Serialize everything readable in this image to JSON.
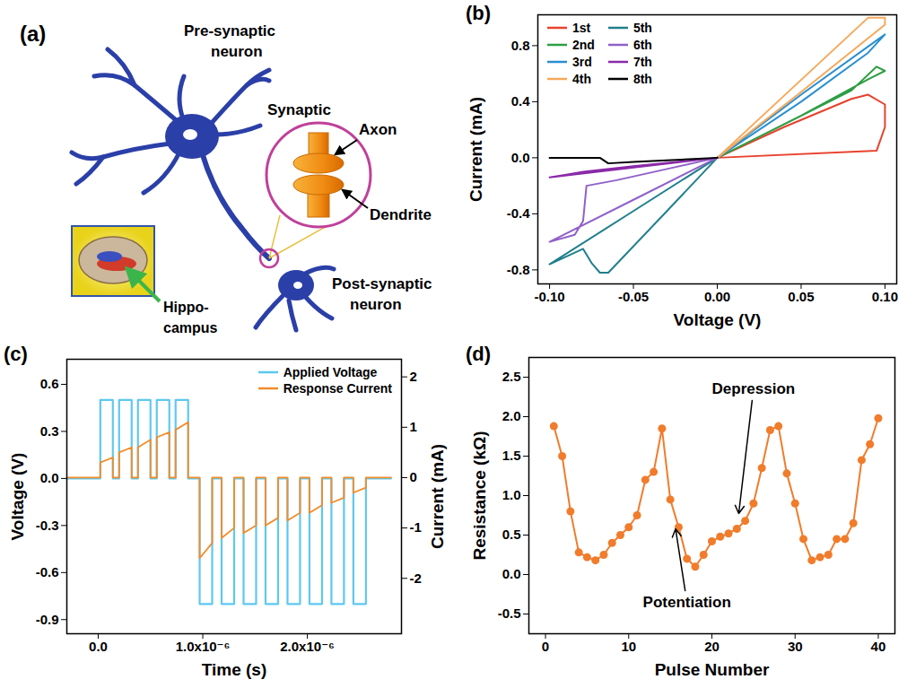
{
  "diagram": {
    "title": "(a)",
    "labels": {
      "pre_synaptic": [
        "Pre-synaptic",
        "neuron"
      ],
      "synaptic": [
        "Synaptic"
      ],
      "axon": [
        "Axon"
      ],
      "dendrite": [
        "Dendrite"
      ],
      "hippocampus": [
        "Hippo-",
        "campus"
      ],
      "post_synaptic": [
        "Post-synaptic",
        "neuron"
      ]
    }
  },
  "chart_data": [
    {
      "type": "line",
      "title": "(b)",
      "xlabel": "Voltage (V)",
      "ylabel": "Current (mA)",
      "xlim": [
        -0.107,
        0.107
      ],
      "xticks": [
        {
          "value": -0.1,
          "label": "-0.10"
        },
        {
          "value": -0.05,
          "label": "-0.05"
        },
        {
          "value": 0,
          "label": "0.00"
        },
        {
          "value": 0.05,
          "label": "0.05"
        },
        {
          "value": 0.1,
          "label": "0.10"
        }
      ],
      "ylim": [
        -0.9,
        1.02
      ],
      "yticks": [
        -0.8,
        -0.4,
        {
          "value": 0,
          "label": "0.0"
        },
        0.4,
        0.8
      ],
      "legend": "top-left",
      "series": [
        {
          "name": "1st",
          "color": "#e8412c",
          "x": [
            0,
            0.04,
            0.08,
            0.09,
            0.1,
            0.1,
            0.095,
            0
          ],
          "values": [
            0,
            0.22,
            0.42,
            0.45,
            0.38,
            0.22,
            0.05,
            0
          ]
        },
        {
          "name": "2nd",
          "color": "#2e9e44",
          "x": [
            0,
            0.05,
            0.08,
            0.095,
            0.1,
            0.09,
            0.05,
            0
          ],
          "values": [
            0,
            0.3,
            0.48,
            0.65,
            0.62,
            0.56,
            0.3,
            0
          ]
        },
        {
          "name": "3rd",
          "color": "#2a8fd0",
          "x": [
            0,
            0.05,
            0.1,
            0.09,
            0.05,
            0
          ],
          "values": [
            0,
            0.45,
            0.88,
            0.75,
            0.4,
            0
          ]
        },
        {
          "name": "4th",
          "color": "#f5a95b",
          "x": [
            0,
            0.09,
            0.1,
            0.1,
            0.05,
            0
          ],
          "values": [
            0,
            1.0,
            1.0,
            0.95,
            0.47,
            0
          ]
        },
        {
          "name": "5th",
          "color": "#1f7f8c",
          "x": [
            0,
            -0.05,
            -0.1,
            -0.08,
            -0.075,
            -0.07,
            -0.065,
            -0.03,
            0
          ],
          "values": [
            0,
            -0.38,
            -0.76,
            -0.65,
            -0.75,
            -0.82,
            -0.82,
            -0.38,
            0
          ]
        },
        {
          "name": "6th",
          "color": "#9060c8",
          "x": [
            0,
            -0.05,
            -0.1,
            -0.085,
            -0.08,
            -0.078,
            -0.06,
            -0.03,
            0
          ],
          "values": [
            0,
            -0.3,
            -0.6,
            -0.55,
            -0.45,
            -0.2,
            -0.16,
            -0.08,
            0
          ]
        },
        {
          "name": "7th",
          "color": "#8a2aa8",
          "x": [
            0,
            -0.1,
            -0.09,
            -0.08,
            -0.05,
            0
          ],
          "values": [
            0,
            -0.14,
            -0.12,
            -0.1,
            -0.06,
            0
          ]
        },
        {
          "name": "8th",
          "color": "#000000",
          "x": [
            0,
            -0.05,
            -0.065,
            -0.07,
            -0.1
          ],
          "values": [
            0,
            -0.03,
            -0.04,
            0,
            0
          ]
        }
      ]
    },
    {
      "type": "line",
      "title": "(c)",
      "xlabel": "Time (s)",
      "ylabel": "Voltage (V)",
      "y2label": "Current (mA)",
      "xlim": [
        -3e-07,
        2.9e-06
      ],
      "xticks": [
        {
          "value": 0,
          "label": "0.0"
        },
        {
          "value": 1e-06,
          "label": "1.0x10⁻⁶"
        },
        {
          "value": 2e-06,
          "label": "2.0x10⁻⁶"
        }
      ],
      "ylim": [
        -0.99,
        0.76
      ],
      "yticks": [
        {
          "value": -0.9,
          "label": "-0.9"
        },
        {
          "value": -0.6,
          "label": "-0.6"
        },
        {
          "value": -0.3,
          "label": "-0.3"
        },
        {
          "value": 0,
          "label": "0.0"
        },
        {
          "value": 0.3,
          "label": "0.3"
        },
        {
          "value": 0.6,
          "label": "0.6"
        }
      ],
      "y2lim": [
        -3.1,
        2.35
      ],
      "y2ticks": [
        -2,
        -1,
        0,
        1,
        2
      ],
      "legend": "top-right",
      "series": [
        {
          "name": "Applied Voltage",
          "color": "#5ec8f0",
          "x": [
            -3e-07,
            2e-08,
            2e-08,
            1.4e-07,
            1.4e-07,
            2e-07,
            2e-07,
            3.2e-07,
            3.2e-07,
            3.8e-07,
            3.8e-07,
            5e-07,
            5e-07,
            5.6e-07,
            5.6e-07,
            6.8e-07,
            6.8e-07,
            7.4e-07,
            7.4e-07,
            8.6e-07,
            8.6e-07,
            9.7e-07,
            9.7e-07,
            1.09e-06,
            1.09e-06,
            1.18e-06,
            1.18e-06,
            1.3e-06,
            1.3e-06,
            1.39e-06,
            1.39e-06,
            1.51e-06,
            1.51e-06,
            1.6e-06,
            1.6e-06,
            1.72e-06,
            1.72e-06,
            1.81e-06,
            1.81e-06,
            1.93e-06,
            1.93e-06,
            2.02e-06,
            2.02e-06,
            2.14e-06,
            2.14e-06,
            2.23e-06,
            2.23e-06,
            2.35e-06,
            2.35e-06,
            2.44e-06,
            2.44e-06,
            2.56e-06,
            2.56e-06,
            2.8e-06
          ],
          "values": [
            0,
            0,
            0.5,
            0.5,
            0,
            0,
            0.5,
            0.5,
            0,
            0,
            0.5,
            0.5,
            0,
            0,
            0.5,
            0.5,
            0,
            0,
            0.5,
            0.5,
            0,
            0,
            -0.8,
            -0.8,
            0,
            0,
            -0.8,
            -0.8,
            0,
            0,
            -0.8,
            -0.8,
            0,
            0,
            -0.8,
            -0.8,
            0,
            0,
            -0.8,
            -0.8,
            0,
            0,
            -0.8,
            -0.8,
            0,
            0,
            -0.8,
            -0.8,
            0,
            0,
            -0.8,
            -0.8,
            0,
            0
          ]
        },
        {
          "name": "Response Current",
          "color": "#f28c28",
          "axis": "y2",
          "x": [
            -3e-07,
            2e-08,
            2e-08,
            1.4e-07,
            1.4e-07,
            2e-07,
            2e-07,
            3.2e-07,
            3.2e-07,
            3.8e-07,
            3.8e-07,
            5e-07,
            5e-07,
            5.6e-07,
            5.6e-07,
            6.8e-07,
            6.8e-07,
            7.4e-07,
            7.4e-07,
            8.6e-07,
            8.6e-07,
            9.7e-07,
            9.7e-07,
            1.09e-06,
            1.09e-06,
            1.18e-06,
            1.18e-06,
            1.3e-06,
            1.3e-06,
            1.39e-06,
            1.39e-06,
            1.51e-06,
            1.51e-06,
            1.6e-06,
            1.6e-06,
            1.72e-06,
            1.72e-06,
            1.81e-06,
            1.81e-06,
            1.93e-06,
            1.93e-06,
            2.02e-06,
            2.02e-06,
            2.14e-06,
            2.14e-06,
            2.23e-06,
            2.23e-06,
            2.35e-06,
            2.35e-06,
            2.44e-06,
            2.44e-06,
            2.56e-06,
            2.56e-06,
            2.8e-06
          ],
          "values": [
            0,
            0,
            0.3,
            0.4,
            0,
            0,
            0.5,
            0.6,
            0,
            0,
            0.6,
            0.75,
            0,
            0,
            0.8,
            0.9,
            0,
            0,
            0.95,
            1.1,
            0,
            0,
            -1.6,
            -1.3,
            0,
            0,
            -1.2,
            -1.0,
            0,
            0,
            -1.1,
            -0.95,
            0,
            0,
            -0.95,
            -0.8,
            0,
            0,
            -0.85,
            -0.7,
            0,
            0,
            -0.7,
            -0.55,
            0,
            0,
            -0.5,
            -0.4,
            0,
            0,
            -0.3,
            -0.2,
            0,
            0
          ]
        }
      ]
    },
    {
      "type": "line",
      "title": "(d)",
      "xlabel": "Pulse Number",
      "ylabel": "Resistance (kΩ)",
      "marker": "circle",
      "color": "#f07c2c",
      "x": [
        1,
        2,
        3,
        4,
        5,
        6,
        7,
        8,
        9,
        10,
        11,
        12,
        13,
        14,
        15,
        16,
        17,
        18,
        19,
        20,
        21,
        22,
        23,
        24,
        25,
        26,
        27,
        28,
        29,
        30,
        31,
        32,
        33,
        34,
        35,
        36,
        37,
        38,
        39,
        40
      ],
      "values": [
        1.88,
        1.5,
        0.8,
        0.28,
        0.22,
        0.18,
        0.25,
        0.4,
        0.5,
        0.6,
        0.75,
        1.2,
        1.3,
        1.85,
        0.95,
        0.6,
        0.2,
        0.1,
        0.25,
        0.42,
        0.48,
        0.52,
        0.58,
        0.68,
        0.9,
        1.35,
        1.83,
        1.88,
        1.28,
        0.9,
        0.45,
        0.18,
        0.22,
        0.25,
        0.45,
        0.45,
        0.65,
        1.45,
        1.65,
        1.98
      ],
      "xlim": [
        -2,
        42
      ],
      "xticks": [
        0,
        10,
        20,
        30,
        40
      ],
      "ylim": [
        -0.75,
        2.75
      ],
      "yticks": [
        -0.5,
        {
          "value": 0,
          "label": "0.0"
        },
        0.5,
        {
          "value": 1,
          "label": "1.0"
        },
        1.5,
        {
          "value": 2,
          "label": "2.0"
        },
        2.5
      ],
      "annotations": [
        {
          "text": "Depression",
          "x": 25,
          "y": 2.35,
          "arrow_to": [
            23.2,
            0.75
          ]
        },
        {
          "text": "Potentiation",
          "x": 17,
          "y": -0.35,
          "arrow_to": [
            15.6,
            0.6
          ]
        }
      ]
    }
  ]
}
